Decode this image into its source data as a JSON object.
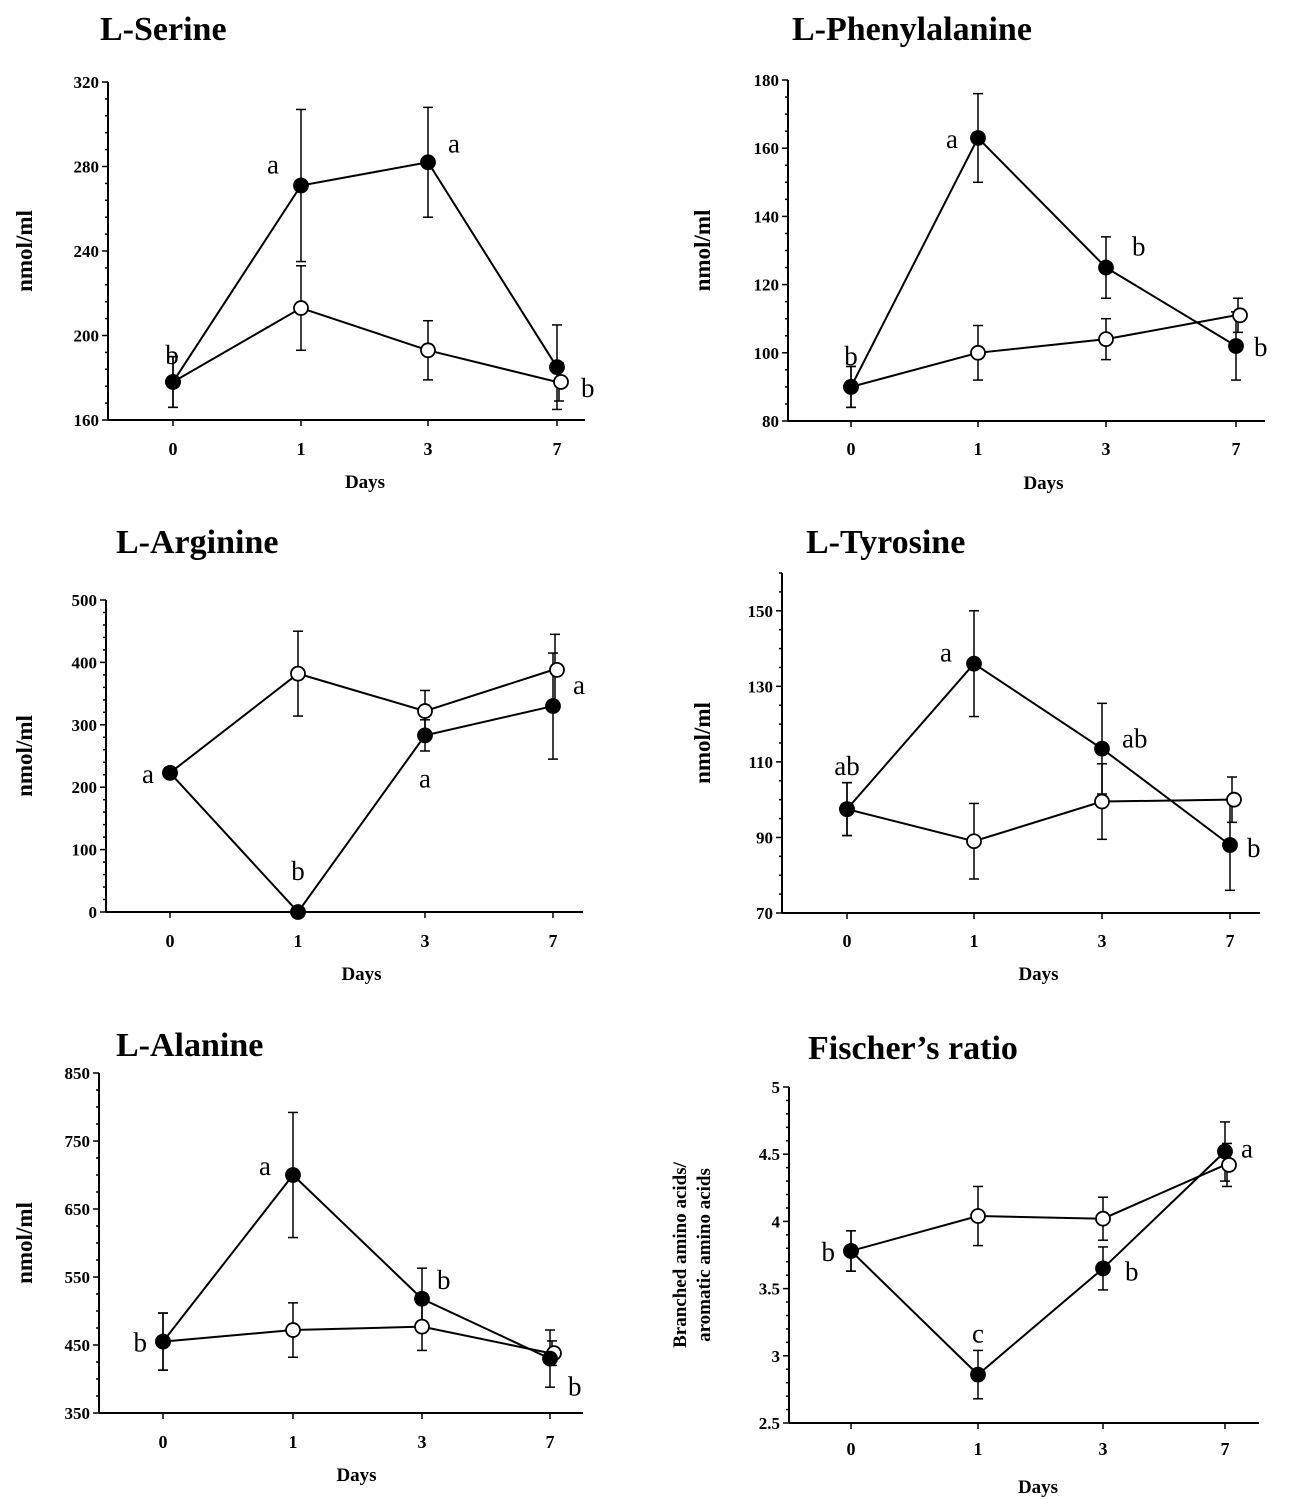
{
  "chart_data": [
    {
      "type": "line",
      "title": "L-Serine",
      "xlabel": "Days",
      "ylabel": "nmol/ml",
      "x": [
        "0",
        "1",
        "3",
        "7"
      ],
      "ylim": [
        160,
        320
      ],
      "yticks": [
        160,
        200,
        240,
        280,
        320
      ],
      "series": [
        {
          "marker": "filled",
          "values": [
            178,
            271,
            282,
            185
          ],
          "errors": [
            12,
            36,
            26,
            20
          ]
        },
        {
          "marker": "open",
          "values": [
            178,
            213,
            193,
            178
          ],
          "errors": [
            12,
            20,
            14,
            9
          ]
        }
      ],
      "annotations": [
        {
          "text": "b",
          "x": "0",
          "y": 178
        },
        {
          "text": "a",
          "x": "1",
          "y": 271
        },
        {
          "text": "a",
          "x": "3",
          "y": 282
        },
        {
          "text": "b",
          "x": "7",
          "y": 178
        }
      ]
    },
    {
      "type": "line",
      "title": "L-Phenylalanine",
      "xlabel": "Days",
      "ylabel": "nmol/ml",
      "x": [
        "0",
        "1",
        "3",
        "7"
      ],
      "ylim": [
        80,
        180
      ],
      "yticks": [
        80,
        100,
        120,
        140,
        160,
        180
      ],
      "series": [
        {
          "marker": "filled",
          "values": [
            90,
            163,
            125,
            102
          ],
          "errors": [
            6,
            13,
            9,
            10
          ]
        },
        {
          "marker": "open",
          "values": [
            90,
            100,
            104,
            111
          ],
          "errors": [
            6,
            8,
            6,
            5
          ]
        }
      ],
      "annotations": [
        {
          "text": "b",
          "x": "0",
          "y": 90
        },
        {
          "text": "a",
          "x": "1",
          "y": 163
        },
        {
          "text": "b",
          "x": "3",
          "y": 125
        },
        {
          "text": "b",
          "x": "7",
          "y": 102
        }
      ]
    },
    {
      "type": "line",
      "title": "L-Arginine",
      "xlabel": "Days",
      "ylabel": "nmol/ml",
      "x": [
        "0",
        "1",
        "3",
        "7"
      ],
      "ylim": [
        0,
        500
      ],
      "yticks": [
        0,
        100,
        200,
        300,
        400,
        500
      ],
      "series": [
        {
          "marker": "filled",
          "values": [
            223,
            0,
            283,
            330
          ],
          "errors": [
            8,
            0,
            25,
            85
          ]
        },
        {
          "marker": "open",
          "values": [
            223,
            382,
            322,
            388
          ],
          "errors": [
            8,
            68,
            33,
            57
          ]
        }
      ],
      "annotations": [
        {
          "text": "a",
          "x": "0",
          "y": 223
        },
        {
          "text": "b",
          "x": "1",
          "y": 0
        },
        {
          "text": "a",
          "x": "3",
          "y": 283
        },
        {
          "text": "a",
          "x": "7",
          "y": 330
        }
      ]
    },
    {
      "type": "line",
      "title": "L-Tyrosine",
      "xlabel": "Days",
      "ylabel": "nmol/ml",
      "x": [
        "0",
        "1",
        "3",
        "7"
      ],
      "ylim": [
        70,
        160
      ],
      "yticks": [
        70,
        90,
        110,
        130,
        150
      ],
      "series": [
        {
          "marker": "filled",
          "values": [
            97.5,
            136,
            113.5,
            88
          ],
          "errors": [
            7,
            14,
            12,
            12
          ]
        },
        {
          "marker": "open",
          "values": [
            97.5,
            89,
            99.5,
            100
          ],
          "errors": [
            7,
            10,
            10,
            6
          ]
        }
      ],
      "annotations": [
        {
          "text": "ab",
          "x": "0",
          "y": 97.5
        },
        {
          "text": "a",
          "x": "1",
          "y": 136
        },
        {
          "text": "ab",
          "x": "3",
          "y": 113.5
        },
        {
          "text": "b",
          "x": "7",
          "y": 88
        }
      ]
    },
    {
      "type": "line",
      "title": "L-Alanine",
      "xlabel": "Days",
      "ylabel": "nmol/ml",
      "x": [
        "0",
        "1",
        "3",
        "7"
      ],
      "ylim": [
        350,
        850
      ],
      "yticks": [
        350,
        450,
        550,
        650,
        750,
        850
      ],
      "series": [
        {
          "marker": "filled",
          "values": [
            455,
            700,
            518,
            430
          ],
          "errors": [
            42,
            92,
            45,
            42
          ]
        },
        {
          "marker": "open",
          "values": [
            455,
            472,
            477,
            438
          ],
          "errors": [
            42,
            40,
            35,
            18
          ]
        }
      ],
      "annotations": [
        {
          "text": "b",
          "x": "0",
          "y": 455
        },
        {
          "text": "a",
          "x": "1",
          "y": 700
        },
        {
          "text": "b",
          "x": "3",
          "y": 518
        },
        {
          "text": "b",
          "x": "7",
          "y": 430
        }
      ]
    },
    {
      "type": "line",
      "title": "Fischer’s ratio",
      "xlabel": "Days",
      "ylabel_lines": [
        "Branched amino acids/",
        "aromatic amino acids"
      ],
      "x": [
        "0",
        "1",
        "3",
        "7"
      ],
      "ylim": [
        2.5,
        5
      ],
      "yticks": [
        2.5,
        3,
        3.5,
        4,
        4.5,
        5
      ],
      "ytick_labels": [
        "2.5",
        "3",
        "3.5",
        "4",
        "4.5",
        "5"
      ],
      "series": [
        {
          "marker": "filled",
          "values": [
            3.78,
            2.86,
            3.65,
            4.52
          ],
          "errors": [
            0.15,
            0.18,
            0.16,
            0.22
          ]
        },
        {
          "marker": "open",
          "values": [
            3.78,
            4.04,
            4.02,
            4.42
          ],
          "errors": [
            0.15,
            0.22,
            0.16,
            0.16
          ]
        }
      ],
      "annotations": [
        {
          "text": "b",
          "x": "0",
          "y": 3.78
        },
        {
          "text": "c",
          "x": "1",
          "y": 2.86
        },
        {
          "text": "b",
          "x": "3",
          "y": 3.65
        },
        {
          "text": "a",
          "x": "7",
          "y": 4.52
        }
      ]
    }
  ]
}
